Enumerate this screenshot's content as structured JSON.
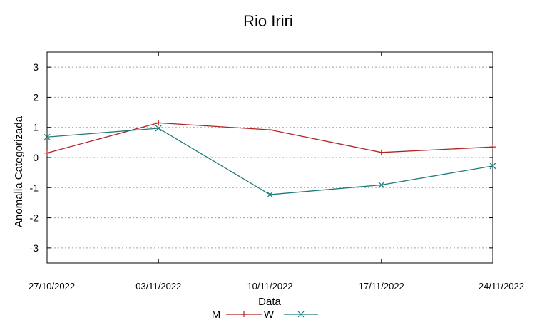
{
  "chart_data": {
    "type": "line",
    "title": "Rio Iriri",
    "xlabel": "Data",
    "ylabel": "Anomalia Categorizada",
    "categories": [
      "27/10/2022",
      "03/11/2022",
      "10/11/2022",
      "17/11/2022",
      "24/11/2022"
    ],
    "ylim": [
      -3.5,
      3.5
    ],
    "yticks": [
      3,
      2,
      1,
      0,
      -1,
      -2,
      -3
    ],
    "ytick_labels": [
      "3",
      "2",
      "1",
      "0",
      "-1",
      "-2",
      "-3"
    ],
    "grid": true,
    "legend_position": "bottom",
    "series": [
      {
        "name": "M",
        "color": "#b22222",
        "marker": "plus",
        "values": [
          0.15,
          1.15,
          0.92,
          0.17,
          0.35
        ]
      },
      {
        "name": "W",
        "color": "#1f7a7a",
        "marker": "cross",
        "values": [
          0.68,
          0.97,
          -1.23,
          -0.91,
          -0.28
        ]
      }
    ]
  }
}
